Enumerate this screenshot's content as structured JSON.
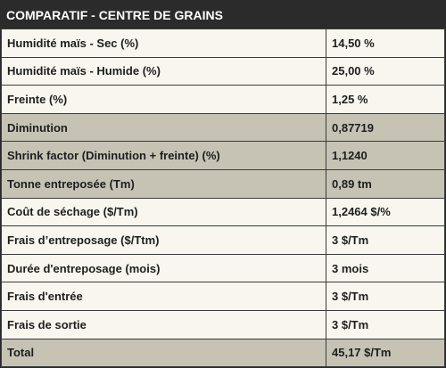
{
  "header": {
    "title": "COMPARATIF - CENTRE DE GRAINS"
  },
  "table": {
    "rows": [
      [
        "Humidité maïs - Sec (%)",
        "14,50 %"
      ],
      [
        "Humidité maïs - Humide (%)",
        "25,00 %"
      ],
      [
        "Freinte (%)",
        "1,25 %"
      ],
      [
        "Diminution",
        "0,87719"
      ],
      [
        "Shrink factor (Diminution + freinte) (%)",
        "1,1240"
      ],
      [
        "Tonne entreposée (Tm)",
        "0,89 tm"
      ],
      [
        "Coût de séchage ($/Tm)",
        "1,2464 $/%"
      ],
      [
        "Frais d’entreposage ($/Ttm)",
        "3 $/Tm"
      ],
      [
        "Durée d'entreposage (mois)",
        "3 mois"
      ],
      [
        "Frais d'entrée",
        "3 $/Tm"
      ],
      [
        "Frais de sortie",
        "3 $/Tm"
      ],
      [
        "Total",
        "45,17 $/Tm"
      ]
    ]
  }
}
